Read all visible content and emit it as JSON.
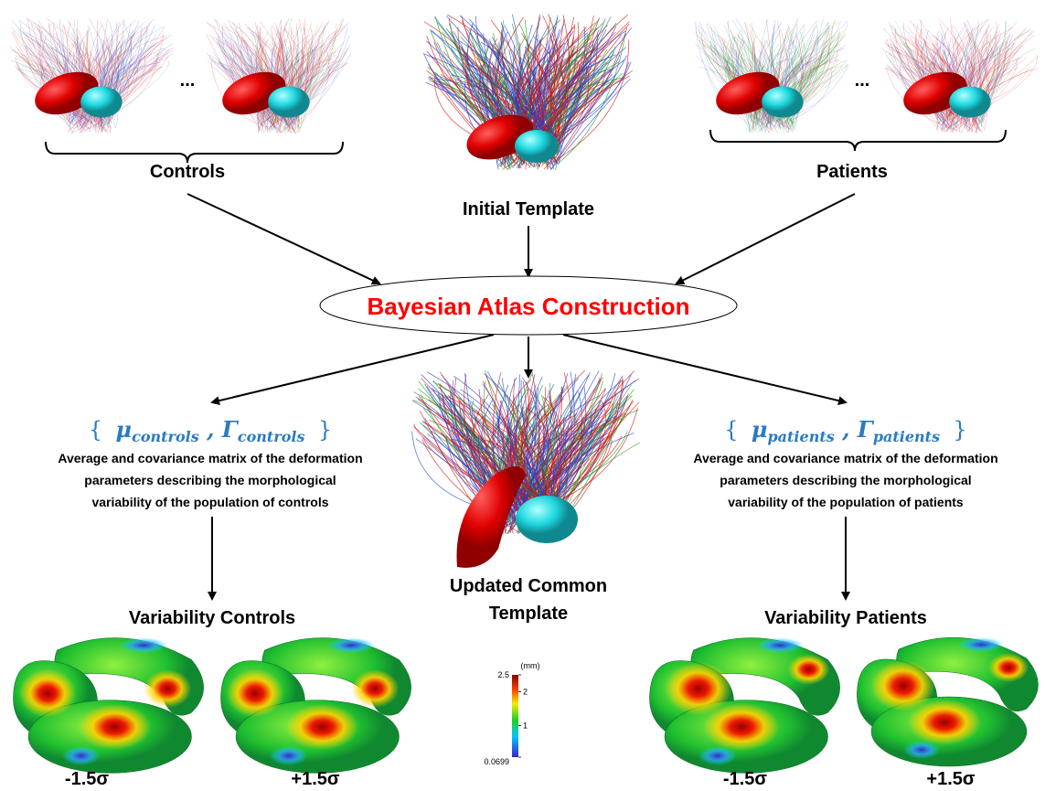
{
  "top": {
    "controls_label": "Controls",
    "controls_ellipsis": "...",
    "template_label": "Initial Template",
    "patients_label": "Patients",
    "patients_ellipsis": "..."
  },
  "center": {
    "process_label": "Bayesian Atlas Construction",
    "updated_template_lines": [
      "Updated Common",
      "Template"
    ]
  },
  "controls": {
    "params": {
      "open": "{",
      "mean_symbol": "μ",
      "mean_subscript": "controls",
      "separator": ",",
      "cov_symbol": "Γ",
      "cov_subscript": "controls",
      "close": "}"
    },
    "description": [
      "Average and covariance matrix of the deformation",
      "parameters describing the morphological",
      "variability of the population of controls"
    ],
    "variability_label": "Variability Controls",
    "sigma_labels": [
      "-1.5σ",
      "+1.5σ"
    ]
  },
  "patients": {
    "params": {
      "open": "{",
      "mean_symbol": "μ",
      "mean_subscript": "patients",
      "separator": ",",
      "cov_symbol": "Γ",
      "cov_subscript": "patients",
      "close": "}"
    },
    "description": [
      "Average and covariance matrix of the deformation",
      "parameters describing the morphological",
      "variability of the population of patients"
    ],
    "variability_label": "Variability Patients",
    "sigma_labels": [
      "-1.5σ",
      "+1.5σ"
    ]
  },
  "colorbar": {
    "unit": "(mm)",
    "ticks": [
      0.0699,
      1,
      2,
      2.5
    ]
  }
}
